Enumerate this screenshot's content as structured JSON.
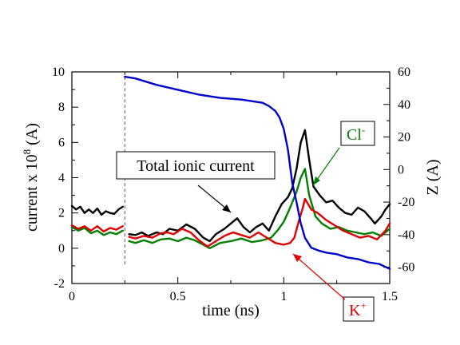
{
  "chart_data": {
    "type": "line",
    "xlabel": "time (ns)",
    "ylabel_left_base": "current x 10",
    "ylabel_left_exp": "8",
    "ylabel_left_unit": " (A)",
    "ylabel_right": "Z (A)",
    "xlim": [
      0,
      1.5
    ],
    "ylim_left": [
      -2,
      10
    ],
    "ylim_right": [
      -70,
      60
    ],
    "x_ticks": [
      0,
      0.5,
      1,
      1.5
    ],
    "x_tick_labels": [
      "0",
      "0.5",
      "1",
      "1.5"
    ],
    "y_left_ticks": [
      -2,
      0,
      2,
      4,
      6,
      8,
      10
    ],
    "y_left_tick_labels": [
      "-2",
      "0",
      "2",
      "4",
      "6",
      "8",
      "10"
    ],
    "y_right_ticks": [
      -60,
      -40,
      -20,
      0,
      20,
      40,
      60
    ],
    "y_right_tick_labels": [
      "-60",
      "-40",
      "-20",
      "0",
      "20",
      "40",
      "60"
    ],
    "dashed_line_x": 0.25,
    "grid": false,
    "colors": {
      "total": "#000000",
      "cl": "#008000",
      "k": "#e00000",
      "z": "#0000d0"
    },
    "annotations": {
      "total": "Total ionic current",
      "cl_base": "Cl",
      "cl_sup": "-",
      "k_base": "K",
      "k_sup": "+"
    },
    "series": [
      {
        "axis": "left",
        "color": "#000000",
        "segments": [
          [
            [
              0.0,
              2.4
            ],
            [
              0.02,
              2.2
            ],
            [
              0.04,
              2.35
            ],
            [
              0.06,
              2.0
            ],
            [
              0.08,
              2.2
            ],
            [
              0.1,
              2.0
            ],
            [
              0.12,
              2.25
            ],
            [
              0.14,
              1.9
            ],
            [
              0.16,
              2.1
            ],
            [
              0.18,
              2.0
            ],
            [
              0.2,
              1.95
            ],
            [
              0.22,
              2.2
            ],
            [
              0.24,
              2.35
            ]
          ],
          [
            [
              0.27,
              0.8
            ],
            [
              0.3,
              0.75
            ],
            [
              0.33,
              0.9
            ],
            [
              0.36,
              0.7
            ],
            [
              0.4,
              0.9
            ],
            [
              0.43,
              0.8
            ],
            [
              0.46,
              1.1
            ],
            [
              0.5,
              1.0
            ],
            [
              0.54,
              1.35
            ],
            [
              0.58,
              1.1
            ],
            [
              0.62,
              0.6
            ],
            [
              0.65,
              0.4
            ],
            [
              0.68,
              0.8
            ],
            [
              0.72,
              1.1
            ],
            [
              0.75,
              1.4
            ],
            [
              0.78,
              1.7
            ],
            [
              0.81,
              1.2
            ],
            [
              0.84,
              0.9
            ],
            [
              0.87,
              1.2
            ],
            [
              0.9,
              1.4
            ],
            [
              0.93,
              1.0
            ],
            [
              0.96,
              1.8
            ],
            [
              0.99,
              2.5
            ],
            [
              1.02,
              2.9
            ],
            [
              1.04,
              3.4
            ],
            [
              1.06,
              4.5
            ],
            [
              1.08,
              6.0
            ],
            [
              1.1,
              6.7
            ],
            [
              1.12,
              5.0
            ],
            [
              1.14,
              3.5
            ],
            [
              1.17,
              3.0
            ],
            [
              1.2,
              2.6
            ],
            [
              1.23,
              2.7
            ],
            [
              1.26,
              2.3
            ],
            [
              1.29,
              2.0
            ],
            [
              1.32,
              1.9
            ],
            [
              1.35,
              2.3
            ],
            [
              1.38,
              2.1
            ],
            [
              1.41,
              1.7
            ],
            [
              1.43,
              1.4
            ],
            [
              1.46,
              1.8
            ],
            [
              1.48,
              2.2
            ],
            [
              1.5,
              2.5
            ]
          ]
        ]
      },
      {
        "axis": "left",
        "color": "#008000",
        "segments": [
          [
            [
              0.0,
              1.2
            ],
            [
              0.03,
              1.0
            ],
            [
              0.06,
              1.15
            ],
            [
              0.09,
              0.85
            ],
            [
              0.12,
              1.0
            ],
            [
              0.15,
              0.75
            ],
            [
              0.18,
              0.9
            ],
            [
              0.21,
              0.8
            ],
            [
              0.24,
              1.0
            ]
          ],
          [
            [
              0.27,
              0.4
            ],
            [
              0.3,
              0.3
            ],
            [
              0.34,
              0.45
            ],
            [
              0.38,
              0.3
            ],
            [
              0.42,
              0.5
            ],
            [
              0.46,
              0.55
            ],
            [
              0.5,
              0.4
            ],
            [
              0.54,
              0.6
            ],
            [
              0.58,
              0.45
            ],
            [
              0.62,
              0.2
            ],
            [
              0.65,
              0.0
            ],
            [
              0.7,
              0.3
            ],
            [
              0.75,
              0.4
            ],
            [
              0.8,
              0.55
            ],
            [
              0.85,
              0.35
            ],
            [
              0.9,
              0.45
            ],
            [
              0.94,
              0.6
            ],
            [
              0.97,
              1.0
            ],
            [
              1.0,
              1.5
            ],
            [
              1.03,
              2.3
            ],
            [
              1.06,
              3.2
            ],
            [
              1.08,
              4.0
            ],
            [
              1.1,
              4.5
            ],
            [
              1.12,
              3.0
            ],
            [
              1.15,
              1.8
            ],
            [
              1.18,
              1.4
            ],
            [
              1.22,
              1.1
            ],
            [
              1.26,
              1.2
            ],
            [
              1.3,
              1.0
            ],
            [
              1.34,
              0.9
            ],
            [
              1.38,
              0.8
            ],
            [
              1.42,
              0.9
            ],
            [
              1.46,
              0.7
            ],
            [
              1.5,
              1.1
            ]
          ]
        ]
      },
      {
        "axis": "left",
        "color": "#e00000",
        "segments": [
          [
            [
              0.0,
              1.3
            ],
            [
              0.03,
              1.1
            ],
            [
              0.06,
              1.25
            ],
            [
              0.09,
              1.0
            ],
            [
              0.12,
              1.25
            ],
            [
              0.15,
              0.95
            ],
            [
              0.18,
              1.15
            ],
            [
              0.21,
              1.05
            ],
            [
              0.24,
              1.25
            ]
          ],
          [
            [
              0.27,
              0.65
            ],
            [
              0.3,
              0.55
            ],
            [
              0.34,
              0.7
            ],
            [
              0.38,
              0.6
            ],
            [
              0.42,
              0.85
            ],
            [
              0.45,
              0.9
            ],
            [
              0.48,
              0.8
            ],
            [
              0.52,
              1.1
            ],
            [
              0.56,
              0.9
            ],
            [
              0.6,
              0.45
            ],
            [
              0.64,
              0.1
            ],
            [
              0.68,
              0.4
            ],
            [
              0.72,
              0.7
            ],
            [
              0.76,
              0.9
            ],
            [
              0.8,
              0.75
            ],
            [
              0.84,
              0.6
            ],
            [
              0.88,
              0.9
            ],
            [
              0.92,
              0.6
            ],
            [
              0.96,
              0.3
            ],
            [
              1.0,
              0.2
            ],
            [
              1.03,
              0.3
            ],
            [
              1.05,
              0.6
            ],
            [
              1.07,
              1.5
            ],
            [
              1.09,
              2.3
            ],
            [
              1.1,
              2.8
            ],
            [
              1.13,
              2.2
            ],
            [
              1.16,
              2.0
            ],
            [
              1.2,
              1.6
            ],
            [
              1.24,
              1.3
            ],
            [
              1.28,
              1.0
            ],
            [
              1.32,
              0.8
            ],
            [
              1.36,
              0.6
            ],
            [
              1.4,
              0.7
            ],
            [
              1.44,
              0.5
            ],
            [
              1.48,
              1.0
            ],
            [
              1.5,
              1.4
            ]
          ]
        ]
      },
      {
        "axis": "right",
        "color": "#0000d0",
        "segments": [
          [
            [
              0.25,
              57
            ],
            [
              0.3,
              56
            ],
            [
              0.4,
              52
            ],
            [
              0.5,
              49
            ],
            [
              0.6,
              46
            ],
            [
              0.7,
              44
            ],
            [
              0.8,
              43
            ],
            [
              0.85,
              42
            ],
            [
              0.9,
              41
            ],
            [
              0.93,
              39
            ],
            [
              0.96,
              36
            ],
            [
              0.98,
              32
            ],
            [
              1.0,
              25
            ],
            [
              1.02,
              12
            ],
            [
              1.04,
              -8
            ],
            [
              1.06,
              -20
            ],
            [
              1.08,
              -33
            ],
            [
              1.1,
              -42
            ],
            [
              1.13,
              -48
            ],
            [
              1.17,
              -50
            ],
            [
              1.2,
              -51
            ],
            [
              1.25,
              -52
            ],
            [
              1.3,
              -54
            ],
            [
              1.35,
              -55
            ],
            [
              1.4,
              -57
            ],
            [
              1.45,
              -58
            ],
            [
              1.5,
              -61
            ]
          ]
        ]
      }
    ]
  }
}
